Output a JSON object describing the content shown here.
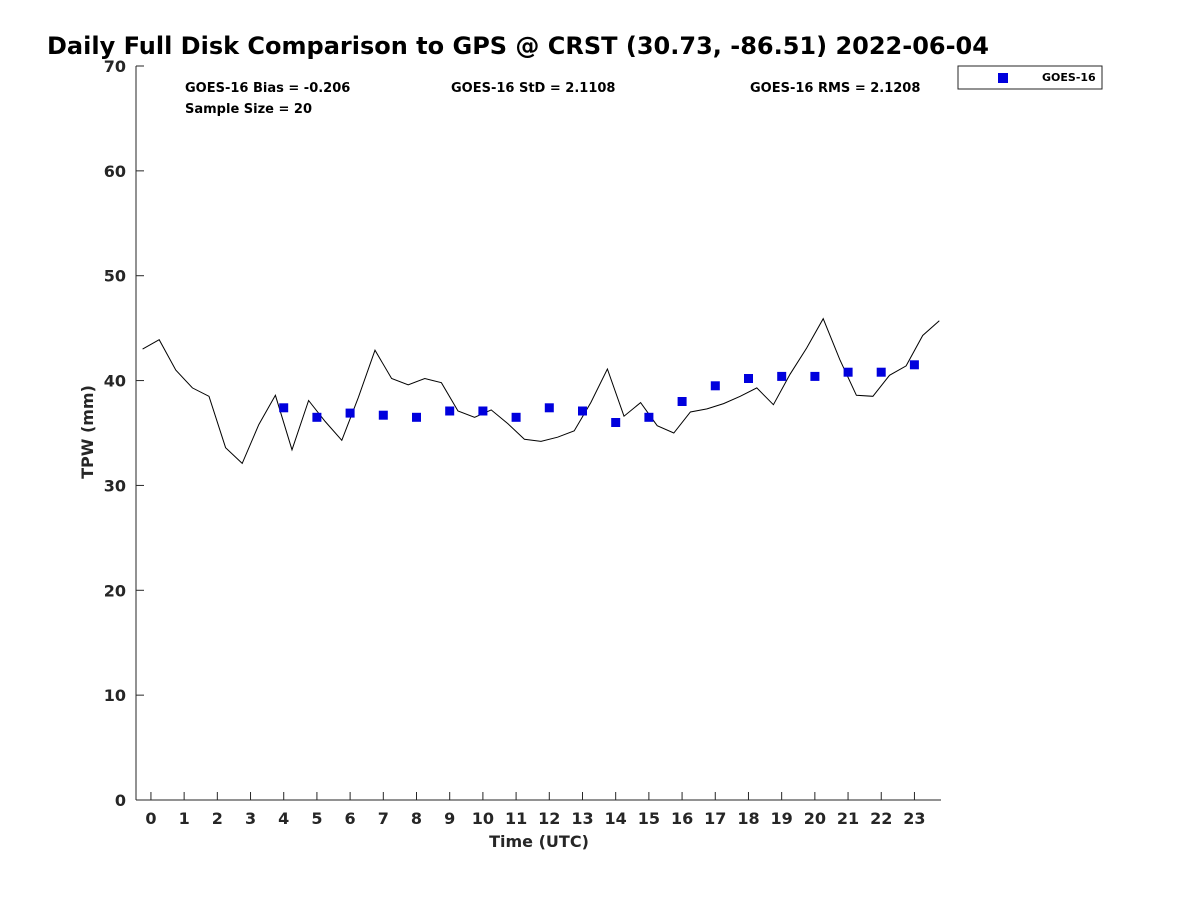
{
  "chart_data": {
    "type": "scatter",
    "title": "Daily Full Disk Comparison to GPS @ CRST (30.73, -86.51) 2022-06-04",
    "xlabel": "Time (UTC)",
    "ylabel": "TPW (mm)",
    "xlim": [
      -0.45,
      23.8
    ],
    "ylim": [
      0,
      70
    ],
    "x_ticks": [
      0,
      1,
      2,
      3,
      4,
      5,
      6,
      7,
      8,
      9,
      10,
      11,
      12,
      13,
      14,
      15,
      16,
      17,
      18,
      19,
      20,
      21,
      22,
      23
    ],
    "y_ticks": [
      0,
      10,
      20,
      30,
      40,
      50,
      60,
      70
    ],
    "grid": false,
    "legend_position": "outside-top-right",
    "stats": {
      "bias": "GOES-16 Bias = -0.206",
      "std": "GOES-16 StD = 2.1108",
      "rms": "GOES-16 RMS = 2.1208",
      "sample_size": "Sample Size = 20"
    },
    "series": [
      {
        "name": "GOES-16",
        "kind": "scatter",
        "marker": "square",
        "color": "#0000dd",
        "x": [
          4,
          5,
          6,
          7,
          8,
          9,
          10,
          11,
          12,
          13,
          14,
          15,
          16,
          17,
          18,
          19,
          20,
          21,
          22,
          23
        ],
        "y": [
          37.4,
          36.5,
          36.9,
          36.7,
          36.5,
          37.1,
          37.1,
          36.5,
          37.4,
          37.1,
          36.0,
          36.5,
          38.0,
          39.5,
          40.2,
          40.4,
          40.4,
          40.8,
          40.8,
          41.5
        ]
      },
      {
        "kind": "line",
        "color": "#000000",
        "x": [
          -0.25,
          0.25,
          0.75,
          1.25,
          1.75,
          2.25,
          2.75,
          3.25,
          3.75,
          4.25,
          4.75,
          5.25,
          5.75,
          6.25,
          6.75,
          7.25,
          7.75,
          8.25,
          8.75,
          9.25,
          9.75,
          10.25,
          10.75,
          11.25,
          11.75,
          12.25,
          12.75,
          13.25,
          13.75,
          14.25,
          14.75,
          15.25,
          15.75,
          16.25,
          16.75,
          17.25,
          17.75,
          18.25,
          18.75,
          19.25,
          19.75,
          20.25,
          20.75,
          21.25,
          21.75,
          22.25,
          22.75,
          23.25,
          23.75
        ],
        "y": [
          43.0,
          43.9,
          41.0,
          39.3,
          38.5,
          33.6,
          32.1,
          35.8,
          38.6,
          33.4,
          38.1,
          36.1,
          34.3,
          38.4,
          42.9,
          40.2,
          39.6,
          40.2,
          39.8,
          37.1,
          36.5,
          37.2,
          35.9,
          34.4,
          34.2,
          34.6,
          35.2,
          37.9,
          41.1,
          36.6,
          37.9,
          35.7,
          35.0,
          37.0,
          37.3,
          37.8,
          38.5,
          39.3,
          37.7,
          40.6,
          43.1,
          45.9,
          42.0,
          38.6,
          38.5,
          40.5,
          41.4,
          44.3,
          45.7
        ]
      }
    ]
  }
}
